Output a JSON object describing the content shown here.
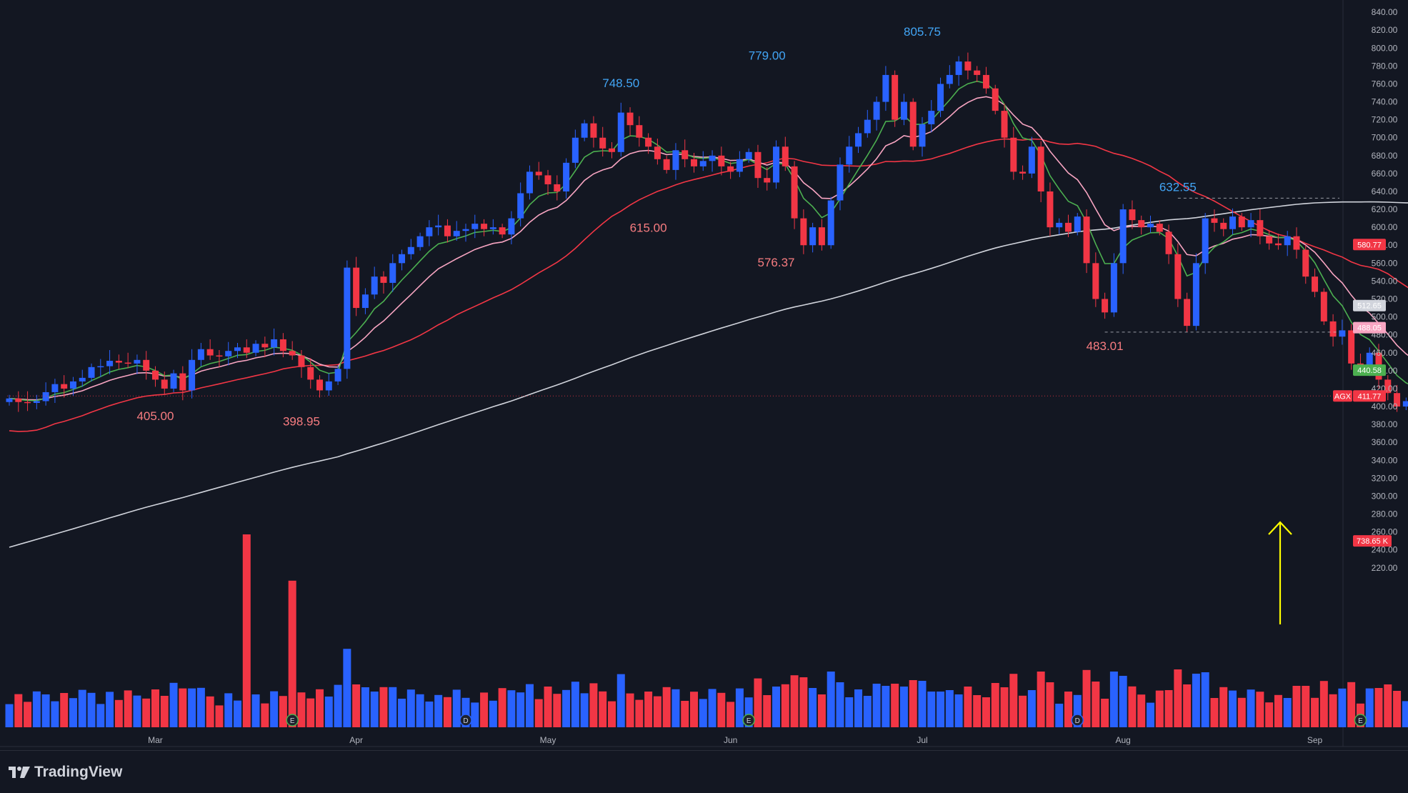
{
  "app": {
    "brand": "TradingView"
  },
  "chart_data": {
    "type": "candlestick",
    "symbol": "AGX",
    "colors": {
      "up": "#2962ff",
      "down": "#f23645",
      "ema_fast": "#4caf50",
      "ema_mid": "#f8a5c2",
      "sma_50": "#f23645",
      "sma_200": "#d1d4dc",
      "arrow": "#ffff00",
      "background": "#131722"
    },
    "y_axis": {
      "min": 200,
      "max": 840,
      "step": 20,
      "ticks": [
        "840.00",
        "820.00",
        "800.00",
        "780.00",
        "760.00",
        "740.00",
        "720.00",
        "700.00",
        "680.00",
        "660.00",
        "640.00",
        "620.00",
        "600.00",
        "580.00",
        "560.00",
        "540.00",
        "520.00",
        "500.00",
        "480.00",
        "460.00",
        "440.00",
        "420.00",
        "400.00",
        "380.00",
        "360.00",
        "340.00",
        "320.00",
        "300.00",
        "280.00",
        "260.00",
        "240.00",
        "220.00"
      ]
    },
    "x_axis": {
      "labels": [
        {
          "label": "Mar",
          "bar": 16
        },
        {
          "label": "Apr",
          "bar": 38
        },
        {
          "label": "May",
          "bar": 59
        },
        {
          "label": "Jun",
          "bar": 79
        },
        {
          "label": "Jul",
          "bar": 100
        },
        {
          "label": "Aug",
          "bar": 122
        },
        {
          "label": "Sep",
          "bar": 143
        }
      ]
    },
    "close": [
      409,
      405,
      404,
      406,
      416,
      425,
      420,
      428,
      432,
      444,
      445,
      451,
      449,
      448,
      452,
      440,
      430,
      420,
      437,
      418,
      452,
      464,
      457,
      456,
      462,
      466,
      460,
      470,
      466,
      475,
      462,
      457,
      444,
      430,
      418,
      428,
      442,
      555,
      510,
      525,
      545,
      538,
      560,
      570,
      578,
      590,
      600,
      602,
      590,
      596,
      598,
      604,
      598,
      600,
      592,
      610,
      638,
      662,
      658,
      648,
      640,
      672,
      700,
      716,
      700,
      688,
      684,
      728,
      714,
      700,
      690,
      676,
      664,
      686,
      676,
      668,
      674,
      680,
      668,
      662,
      676,
      684,
      655,
      650,
      690,
      668,
      610,
      580,
      600,
      580,
      630,
      670,
      690,
      705,
      720,
      740,
      770,
      720,
      740,
      690,
      715,
      730,
      760,
      770,
      785,
      775,
      770,
      755,
      730,
      700,
      662,
      660,
      690,
      640,
      600,
      605,
      595,
      612,
      560,
      520,
      505,
      560,
      620,
      608,
      600,
      604,
      595,
      570,
      520,
      490,
      560,
      610,
      605,
      598,
      612,
      600,
      608,
      590,
      582,
      580,
      590,
      575,
      545,
      528,
      495,
      478,
      485,
      448,
      446,
      460,
      430,
      415,
      400,
      406,
      410,
      405
    ],
    "price_labels": [
      {
        "text": "748.50",
        "bar": 67,
        "price": 748.5,
        "kind": "high"
      },
      {
        "text": "779.00",
        "bar": 83,
        "price": 779,
        "kind": "high"
      },
      {
        "text": "805.75",
        "bar": 100,
        "price": 805.75,
        "kind": "high"
      },
      {
        "text": "632.55",
        "bar": 128,
        "price": 632.55,
        "kind": "high"
      },
      {
        "text": "405.00",
        "bar": 16,
        "price": 405,
        "kind": "low"
      },
      {
        "text": "398.95",
        "bar": 32,
        "price": 398.95,
        "kind": "low"
      },
      {
        "text": "615.00",
        "bar": 70,
        "price": 615,
        "kind": "low"
      },
      {
        "text": "576.37",
        "bar": 84,
        "price": 576.37,
        "kind": "low"
      },
      {
        "text": "483.01",
        "bar": 120,
        "price": 483.01,
        "kind": "low"
      }
    ],
    "axis_tags": [
      {
        "text": "580.77",
        "price": 580.77,
        "color": "#f23645"
      },
      {
        "text": "512.65",
        "price": 512.65,
        "color": "#d1d4dc"
      },
      {
        "text": "488.05",
        "price": 488.05,
        "color": "#f8a5c2"
      },
      {
        "text": "440.58",
        "price": 440.58,
        "color": "#4caf50"
      },
      {
        "text": "411.77",
        "price": 411.77,
        "color": "#f23645",
        "symbol": "AGX"
      },
      {
        "text": "738.65 K",
        "price": 250,
        "color": "#f23645"
      }
    ],
    "dashed_levels": [
      {
        "price": 632.55,
        "from_bar": 128
      },
      {
        "price": 483.01,
        "from_bar": 120
      }
    ],
    "events": [
      {
        "bar": 31,
        "kind": "E"
      },
      {
        "bar": 50,
        "kind": "D"
      },
      {
        "bar": 81,
        "kind": "E"
      },
      {
        "bar": 117,
        "kind": "D"
      },
      {
        "bar": 148,
        "kind": "E"
      }
    ],
    "volume_spikes": [
      {
        "bar": 26,
        "rel": 1.0
      },
      {
        "bar": 31,
        "rel": 0.76
      }
    ]
  }
}
